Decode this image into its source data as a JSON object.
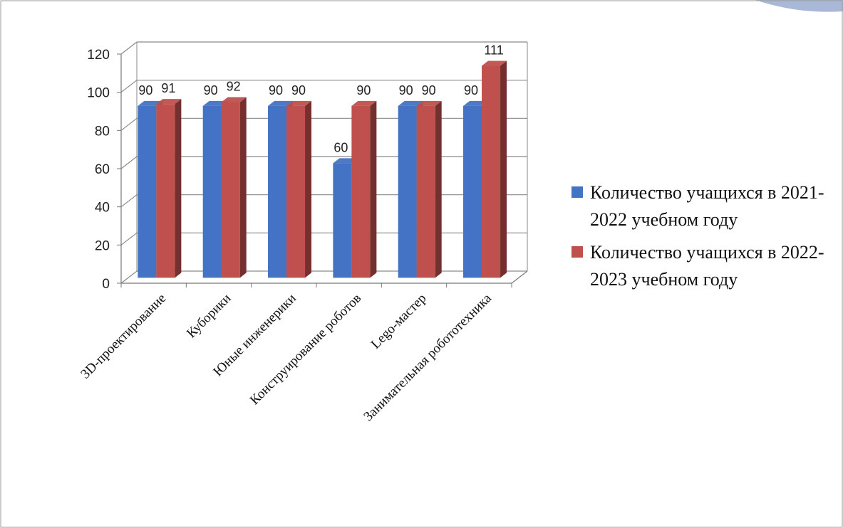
{
  "chart_data": {
    "type": "bar",
    "categories": [
      "3D-проектирование",
      "Куборики",
      "Юные инженерики",
      "Конструирование роботов",
      "Lego-мастер",
      "Занимательная робототехника"
    ],
    "series": [
      {
        "name": "Количество учащихся  в 2021-2022  учебном году",
        "color": "#4472c4",
        "values": [
          90,
          90,
          90,
          60,
          90,
          90
        ]
      },
      {
        "name": "Количество  учащихся в 2022-2023  учебном году",
        "color": "#c0504d",
        "values": [
          91,
          92,
          90,
          90,
          90,
          111
        ]
      }
    ],
    "data_labels": [
      [
        "90",
        "90",
        "90",
        "60",
        "90",
        "90"
      ],
      [
        "91",
        "92",
        "90",
        "90",
        "90",
        "111"
      ]
    ],
    "yticks": [
      "0",
      "20",
      "40",
      "60",
      "80",
      "100",
      "120"
    ],
    "ylim": [
      0,
      120
    ],
    "grid": true,
    "legend_position": "right",
    "style": "3d-clustered-column"
  },
  "legend": {
    "series1": "Количество учащихся  в 2021-2022  учебном году",
    "series2": "Количество  учащихся в 2022-2023  учебном году"
  }
}
